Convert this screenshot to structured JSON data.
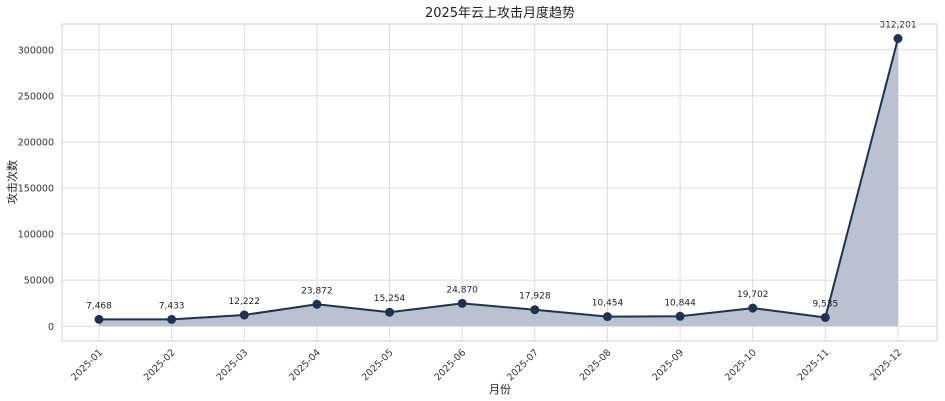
{
  "chart_data": {
    "type": "area",
    "title": "2025年云上攻击月度趋势",
    "xlabel": "月份",
    "ylabel": "攻击次数",
    "categories": [
      "2025-01",
      "2025-02",
      "2025-03",
      "2025-04",
      "2025-05",
      "2025-06",
      "2025-07",
      "2025-08",
      "2025-09",
      "2025-10",
      "2025-11",
      "2025-12"
    ],
    "values": [
      7468,
      7433,
      12222,
      23872,
      15254,
      24870,
      17928,
      10454,
      10844,
      19702,
      9535,
      312201
    ],
    "value_labels": [
      "7,468",
      "7,433",
      "12,222",
      "23,872",
      "15,254",
      "24,870",
      "17,928",
      "10,454",
      "10,844",
      "19,702",
      "9,535",
      "312,201"
    ],
    "yticks": [
      0,
      50000,
      100000,
      150000,
      200000,
      250000,
      300000
    ],
    "ytick_labels": [
      "0",
      "50000",
      "100000",
      "150000",
      "200000",
      "250000",
      "300000"
    ],
    "ylim": [
      -16000,
      328000
    ],
    "grid": true,
    "line_color": "#1f3350",
    "fill_color": "#b4bfcd"
  }
}
